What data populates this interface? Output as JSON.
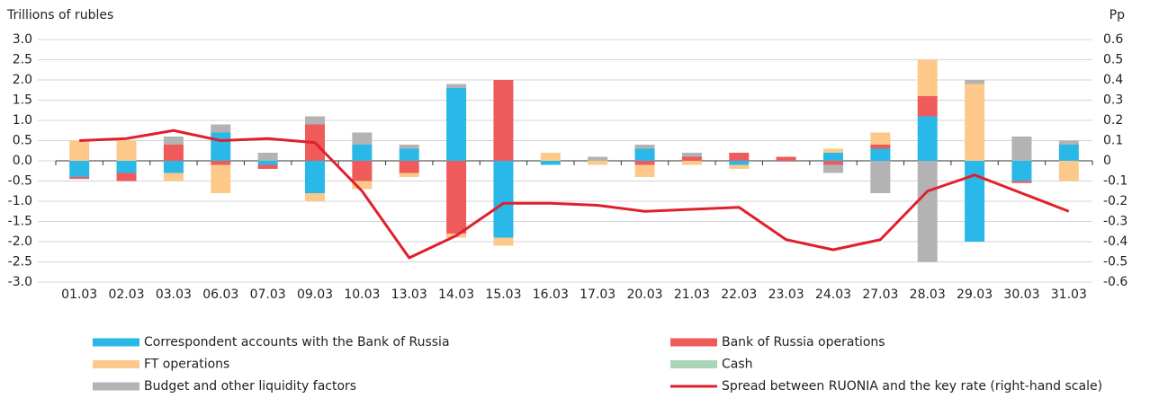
{
  "chart_data": {
    "type": "bar",
    "ylabel": "Trillions of rubles",
    "y2label": "Pp",
    "categories": [
      "01.03",
      "02.03",
      "03.03",
      "06.03",
      "07.03",
      "09.03",
      "10.03",
      "13.03",
      "14.03",
      "15.03",
      "16.03",
      "17.03",
      "20.03",
      "21.03",
      "22.03",
      "23.03",
      "24.03",
      "27.03",
      "28.03",
      "29.03",
      "30.03",
      "31.03"
    ],
    "series": [
      {
        "name": "Correspondent accounts with the Bank of Russia",
        "color": "#29b8e8",
        "values": [
          -0.4,
          -0.3,
          -0.3,
          0.7,
          -0.1,
          -0.8,
          0.4,
          0.3,
          1.8,
          -1.9,
          -0.1,
          0,
          0.3,
          0,
          -0.1,
          0,
          0.2,
          0.3,
          1.1,
          -2.0,
          -0.5,
          0.4
        ]
      },
      {
        "name": "Bank of Russia operations",
        "color": "#ef5b5b",
        "values": [
          -0.05,
          -0.2,
          0.4,
          -0.1,
          -0.1,
          0.9,
          -0.5,
          -0.3,
          -1.8,
          2.0,
          0,
          0,
          -0.1,
          0.1,
          0.2,
          0.1,
          -0.1,
          0.1,
          0.5,
          0,
          -0.05,
          0
        ]
      },
      {
        "name": "FT operations",
        "color": "#fdc98b",
        "values": [
          0.5,
          0.5,
          -0.2,
          -0.7,
          0,
          -0.2,
          -0.2,
          -0.1,
          -0.1,
          -0.2,
          0.2,
          -0.1,
          -0.3,
          -0.1,
          -0.1,
          0,
          0.1,
          0.3,
          0.9,
          1.9,
          0,
          -0.5
        ]
      },
      {
        "name": "Cash",
        "color": "#a9d6b6",
        "values": [
          0,
          0,
          0,
          0,
          0,
          0,
          0,
          0,
          0,
          0,
          0,
          0,
          0,
          0,
          0,
          0,
          0,
          0,
          0,
          0,
          0,
          0
        ]
      },
      {
        "name": "Budget and other liquidity factors",
        "color": "#b3b3b3",
        "values": [
          0,
          0,
          0.2,
          0.2,
          0.2,
          0.2,
          0.3,
          0.1,
          0.1,
          0,
          0,
          0.1,
          0.1,
          0.1,
          0,
          0,
          -0.2,
          -0.8,
          -2.5,
          0.1,
          0.6,
          0.1
        ]
      },
      {
        "name": "Spread between RUONIA and the key rate (right-hand scale)",
        "color": "#e0202c",
        "type": "line",
        "axis": "y2",
        "values": [
          0.1,
          0.11,
          0.15,
          0.1,
          0.11,
          0.09,
          -0.15,
          -0.48,
          -0.37,
          -0.21,
          -0.21,
          -0.22,
          -0.25,
          -0.24,
          -0.23,
          -0.39,
          -0.44,
          -0.39,
          -0.15,
          -0.07,
          -0.16,
          -0.25
        ]
      }
    ],
    "ylim": [
      -3,
      3
    ],
    "yticks": [
      {
        "value": 3,
        "label": "3.0"
      },
      2.5,
      {
        "value": 2,
        "label": "2.0"
      },
      1.5,
      {
        "value": 1,
        "label": "1.0"
      },
      0.5,
      {
        "value": 0,
        "label": "0.0"
      },
      -0.5,
      {
        "value": -1,
        "label": "-1.0"
      },
      -1.5,
      {
        "value": -2,
        "label": "-2.0"
      },
      -2.5,
      {
        "value": -3,
        "label": "-3.0"
      }
    ],
    "y2lim": [
      -0.6,
      0.6
    ],
    "y2ticks": [
      0.6,
      0.5,
      0.4,
      0.3,
      0.2,
      0.1,
      0,
      -0.1,
      -0.2,
      -0.3,
      -0.4,
      -0.5,
      -0.6
    ],
    "grid": true
  }
}
